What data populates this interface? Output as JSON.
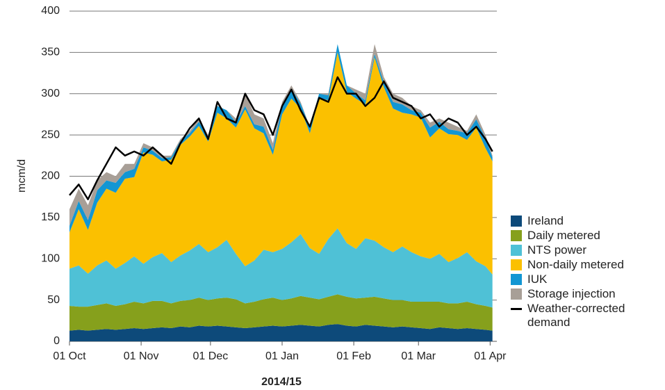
{
  "chart_data": {
    "type": "stacked-area",
    "y_label": "mcm/d",
    "x_label": "2014/15",
    "x": [
      0,
      4,
      8,
      12,
      16,
      20,
      24,
      28,
      32,
      36,
      40,
      44,
      48,
      52,
      56,
      60,
      64,
      68,
      72,
      76,
      80,
      84,
      88,
      92,
      96,
      100,
      104,
      108,
      112,
      116,
      120,
      124,
      128,
      132,
      136,
      140,
      144,
      148,
      152,
      156,
      160,
      164,
      168,
      172,
      176,
      180,
      183
    ],
    "xlim": [
      0,
      184
    ],
    "xticks": [
      {
        "value": 0,
        "label": "01 Oct"
      },
      {
        "value": 31,
        "label": "01 Nov"
      },
      {
        "value": 61,
        "label": "01 Dec"
      },
      {
        "value": 92,
        "label": "01 Jan"
      },
      {
        "value": 123,
        "label": "01 Feb"
      },
      {
        "value": 151,
        "label": "01 Mar"
      },
      {
        "value": 182,
        "label": "01 Apr"
      }
    ],
    "ylim": [
      0,
      400
    ],
    "yticks": [
      0,
      50,
      100,
      150,
      200,
      250,
      300,
      350,
      400
    ],
    "grid": true,
    "series": [
      {
        "name": "Ireland",
        "color": "#0d4a7a",
        "values": [
          13,
          14,
          13,
          14,
          15,
          14,
          15,
          16,
          15,
          16,
          17,
          16,
          18,
          17,
          19,
          18,
          19,
          18,
          17,
          16,
          17,
          18,
          19,
          18,
          19,
          20,
          19,
          18,
          20,
          21,
          19,
          18,
          20,
          19,
          18,
          17,
          18,
          17,
          16,
          15,
          17,
          16,
          15,
          16,
          15,
          14,
          13
        ]
      },
      {
        "name": "Daily metered",
        "color": "#86a01c",
        "values": [
          30,
          28,
          29,
          30,
          31,
          29,
          30,
          32,
          31,
          33,
          32,
          30,
          31,
          33,
          34,
          32,
          33,
          35,
          34,
          30,
          31,
          33,
          34,
          32,
          33,
          35,
          34,
          33,
          34,
          36,
          35,
          34,
          33,
          35,
          34,
          33,
          32,
          31,
          32,
          33,
          31,
          30,
          31,
          32,
          30,
          29,
          28
        ]
      },
      {
        "name": "NTS power",
        "color": "#4fc1d6",
        "values": [
          45,
          50,
          40,
          48,
          52,
          45,
          50,
          55,
          48,
          53,
          58,
          50,
          55,
          60,
          65,
          58,
          62,
          70,
          55,
          45,
          50,
          60,
          55,
          62,
          68,
          75,
          60,
          55,
          70,
          80,
          65,
          60,
          72,
          68,
          62,
          58,
          65,
          60,
          55,
          52,
          58,
          50,
          55,
          60,
          52,
          48,
          40
        ]
      },
      {
        "name": "Non-daily metered",
        "color": "#fbc000",
        "values": [
          44,
          68,
          53,
          76,
          87,
          92,
          102,
          96,
          135,
          124,
          111,
          124,
          134,
          138,
          143,
          134,
          163,
          147,
          153,
          190,
          160,
          141,
          118,
          163,
          174,
          152,
          139,
          189,
          168,
          213,
          183,
          182,
          162,
          222,
          194,
          174,
          162,
          167,
          168,
          147,
          152,
          155,
          149,
          136,
          162,
          143,
          137
        ]
      },
      {
        "name": "IUK",
        "color": "#1296d3",
        "values": [
          8,
          10,
          12,
          15,
          10,
          12,
          8,
          10,
          6,
          5,
          4,
          3,
          5,
          4,
          5,
          6,
          8,
          10,
          6,
          4,
          5,
          8,
          6,
          10,
          12,
          6,
          8,
          5,
          6,
          10,
          8,
          6,
          5,
          4,
          6,
          8,
          10,
          5,
          6,
          12,
          8,
          6,
          5,
          8,
          10,
          12,
          5
        ]
      },
      {
        "name": "Storage injection",
        "color": "#a89f97",
        "values": [
          20,
          15,
          18,
          12,
          10,
          8,
          10,
          6,
          5,
          4,
          3,
          2,
          2,
          3,
          4,
          2,
          0,
          0,
          5,
          15,
          12,
          10,
          8,
          5,
          4,
          2,
          0,
          0,
          2,
          0,
          0,
          5,
          8,
          12,
          6,
          10,
          8,
          5,
          3,
          6,
          4,
          8,
          5,
          3,
          6,
          4,
          2
        ]
      }
    ],
    "line": {
      "name": "Weather-corrected demand",
      "color": "#000000",
      "values": [
        177,
        190,
        172,
        195,
        215,
        235,
        225,
        230,
        225,
        235,
        225,
        215,
        240,
        258,
        270,
        245,
        290,
        270,
        265,
        300,
        280,
        275,
        250,
        285,
        305,
        280,
        260,
        295,
        290,
        320,
        300,
        300,
        285,
        295,
        315,
        295,
        290,
        285,
        270,
        275,
        260,
        270,
        265,
        250,
        260,
        245,
        230
      ]
    }
  }
}
